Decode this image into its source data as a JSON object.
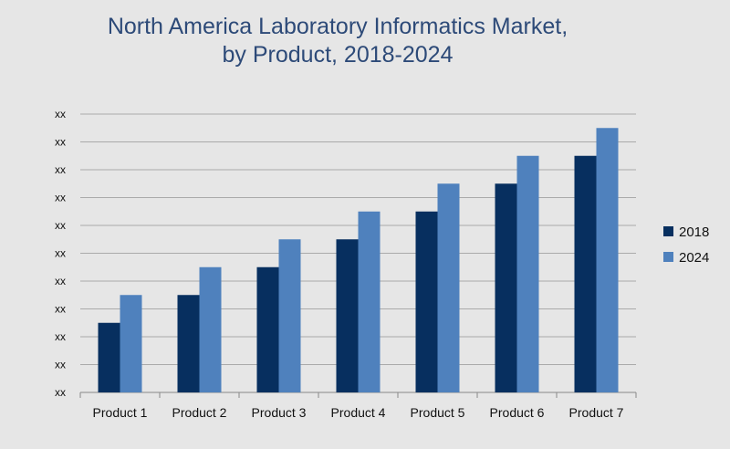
{
  "chart_data": {
    "type": "bar",
    "title_lines": [
      "North America Laboratory Informatics Market,",
      "by Product, 2018-2024"
    ],
    "categories": [
      "Product 1",
      "Product 2",
      "Product 3",
      "Product 4",
      "Product 5",
      "Product 6",
      "Product 7"
    ],
    "series": [
      {
        "name": "2018",
        "color": "#072f5f",
        "values": [
          2.5,
          3.5,
          4.5,
          5.5,
          6.5,
          7.5,
          8.5
        ]
      },
      {
        "name": "2024",
        "color": "#4f81bd",
        "values": [
          3.5,
          4.5,
          5.5,
          6.5,
          7.5,
          8.5,
          9.5
        ]
      }
    ],
    "ylim": [
      0,
      10
    ],
    "yticks": [
      "xx",
      "xx",
      "xx",
      "xx",
      "xx",
      "xx",
      "xx",
      "xx",
      "xx",
      "xx",
      "xx"
    ],
    "xlabel": "",
    "ylabel": "",
    "grid": true,
    "legend_position": "right",
    "colors": {
      "background": "#e6e6e6",
      "title": "#2d4a78",
      "grid": "#aaaaaa"
    }
  }
}
